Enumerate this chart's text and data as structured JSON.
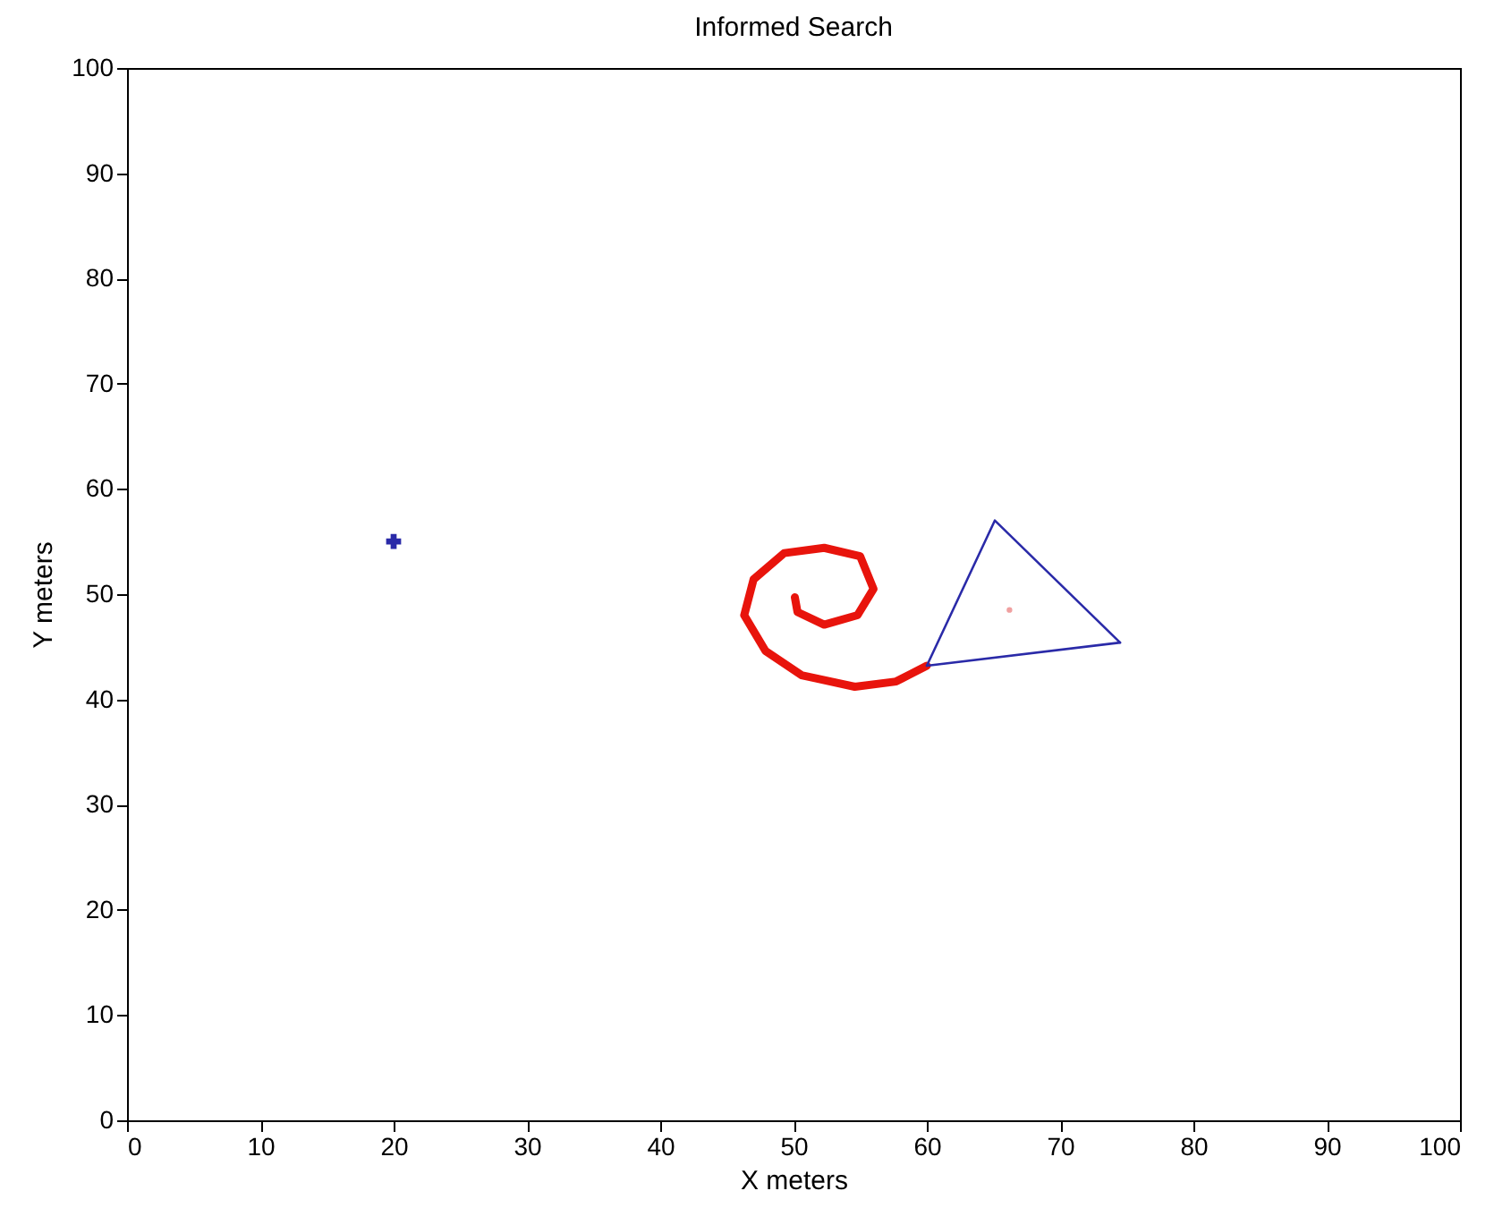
{
  "chart_data": {
    "type": "line",
    "title": "Informed Search",
    "xlabel": "X meters",
    "ylabel": "Y meters",
    "xlim": [
      0,
      100
    ],
    "xticks": [
      0,
      10,
      20,
      30,
      40,
      50,
      60,
      70,
      80,
      90,
      100
    ],
    "ylim": [
      0,
      100
    ],
    "yticks": [
      0,
      10,
      20,
      30,
      40,
      50,
      60,
      70,
      80,
      90,
      100
    ],
    "grid": false,
    "series": [
      {
        "color": "#e8140c",
        "x": [
          50.1,
          50.3,
          52.3,
          54.8,
          56.0,
          55.0,
          52.3,
          49.3,
          47.0,
          46.3,
          47.9,
          50.6,
          54.6,
          57.7,
          60.0
        ],
        "values": [
          49.7,
          48.3,
          47.1,
          48.0,
          50.5,
          53.6,
          54.4,
          53.9,
          51.4,
          48.0,
          44.6,
          42.3,
          41.2,
          41.7,
          43.2
        ]
      },
      {
        "color": "#2a2aa8",
        "x": [
          60.0,
          65.1,
          74.5
        ],
        "values": [
          43.2,
          57.0,
          45.4
        ]
      },
      {
        "color": "#2a2aa8",
        "x": [
          60.0,
          74.5
        ],
        "values": [
          43.2,
          45.4
        ]
      },
      {
        "type": "scatter",
        "marker": "cross",
        "color": "#2a2aa8",
        "x": [
          20
        ],
        "values": [
          55
        ]
      },
      {
        "type": "scatter",
        "marker": "circle",
        "color": "#f0a0a0",
        "x": [
          66.2
        ],
        "values": [
          48.5
        ]
      }
    ]
  }
}
